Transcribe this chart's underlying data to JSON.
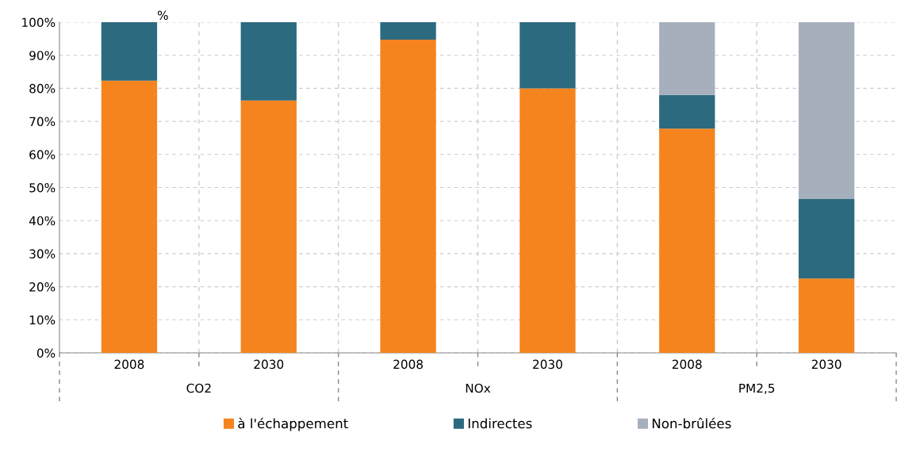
{
  "chart_data": {
    "type": "bar",
    "stacked": true,
    "ylabel": "%",
    "categories": [
      "2008",
      "2030",
      "2008",
      "2030",
      "2008",
      "2030"
    ],
    "annotations": [
      "CO2",
      "NOx",
      "PM2,5"
    ],
    "series": [
      {
        "name": "à l'échappement",
        "color": "#f5841f",
        "values": [
          82.3,
          76.3,
          94.7,
          80,
          67.8,
          22.5
        ]
      },
      {
        "name": "Indirectes",
        "color": "#2c6a80",
        "values": [
          17.7,
          23.7,
          5.3,
          20,
          10.2,
          24
        ]
      },
      {
        "name": "Non-brûlées",
        "color": "#a6b0bd",
        "values": [
          0,
          0,
          0,
          0,
          22,
          53.5
        ]
      }
    ],
    "ylim": [
      0,
      100
    ],
    "yticks": [
      {
        "value": 0,
        "label": "0%"
      },
      {
        "value": 10,
        "label": "10%"
      },
      {
        "value": 20,
        "label": "20%"
      },
      {
        "value": 30,
        "label": "30%"
      },
      {
        "value": 40,
        "label": "40%"
      },
      {
        "value": 50,
        "label": "50%"
      },
      {
        "value": 60,
        "label": "60%"
      },
      {
        "value": 70,
        "label": "70%"
      },
      {
        "value": 80,
        "label": "80%"
      },
      {
        "value": 90,
        "label": "90%"
      },
      {
        "value": 100,
        "label": "100%"
      }
    ],
    "grid": true,
    "legend": "bottom"
  }
}
